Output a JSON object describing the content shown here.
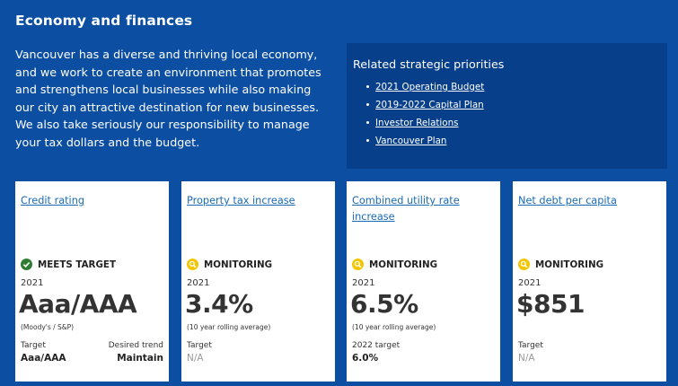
{
  "section": {
    "title": "Economy and finances",
    "intro": "Vancouver has a diverse and thriving local economy, and we work to create an environment that promotes and strengthens local businesses while also making our city an attractive destination for new businesses. We also take seriously our responsibility to manage your tax dollars and the budget."
  },
  "priorities": {
    "heading": "Related strategic priorities",
    "links": [
      {
        "label": "2021 Operating Budget"
      },
      {
        "label": "2019-2022 Capital Plan"
      },
      {
        "label": "Investor Relations"
      },
      {
        "label": "Vancouver Plan"
      }
    ]
  },
  "cards": [
    {
      "link": "Credit rating",
      "status": "MEETS TARGET",
      "status_icon": "check-circle-icon",
      "year": "2021",
      "value": "Aaa/AAA",
      "note": "(Moody's / S&P)",
      "target_label": "Target",
      "target_value": "Aaa/AAA",
      "trend_label": "Desired trend",
      "trend_value": "Maintain"
    },
    {
      "link": "Property tax increase",
      "status": "MONITORING",
      "status_icon": "monitoring-icon",
      "year": "2021",
      "value": "3.4%",
      "note": "(10 year rolling average)",
      "target_label": "Target",
      "target_value": "N/A"
    },
    {
      "link": "Combined utility rate increase",
      "status": "MONITORING",
      "status_icon": "monitoring-icon",
      "year": "2021",
      "value": "6.5%",
      "note": "(10 year rolling average)",
      "target_label": "2022 target",
      "target_value": "6.0%"
    },
    {
      "link": "Net debt per capita",
      "status": "MONITORING",
      "status_icon": "monitoring-icon",
      "year": "2021",
      "value": "$851",
      "note": "",
      "target_label": "Target",
      "target_value": "N/A"
    }
  ],
  "colors": {
    "background": "#0b4ea2",
    "panel": "#083f8a",
    "link": "#1a6bb5",
    "meets_target": "#2e7d32",
    "monitoring": "#f2c500"
  }
}
